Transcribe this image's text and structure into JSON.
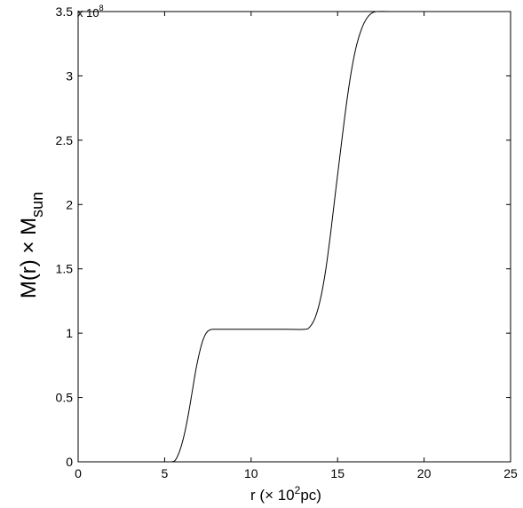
{
  "chart_data": {
    "type": "line",
    "title": "",
    "xlabel": {
      "main": "r (× 10",
      "sup": "2",
      "tail": "pc)"
    },
    "ylabel": {
      "main": "M(r) × M",
      "sub": "sun"
    },
    "y_multiplier": {
      "base": "x 10",
      "exp": "8"
    },
    "xlim": [
      0,
      25
    ],
    "ylim": [
      0,
      3.5
    ],
    "x_ticks": [
      0,
      5,
      10,
      15,
      20,
      25
    ],
    "x_tick_labels": [
      "0",
      "5",
      "10",
      "15",
      "20",
      "25"
    ],
    "y_ticks": [
      0,
      0.5,
      1,
      1.5,
      2,
      2.5,
      3,
      3.5
    ],
    "y_tick_labels": [
      "0",
      "0.5",
      "1",
      "1.5",
      "2",
      "2.5",
      "3",
      "3.5"
    ],
    "grid": false,
    "line_color": "#000000",
    "series": [
      {
        "x": [
          5.4,
          5.6,
          5.8,
          6.0,
          6.2,
          6.4,
          6.6,
          6.8,
          7.0,
          7.2,
          7.4,
          7.6,
          7.8,
          8.0,
          10.0,
          12.0,
          13.1,
          13.4,
          13.7,
          14.0,
          14.3,
          14.6,
          14.9,
          15.2,
          15.5,
          15.8,
          16.1,
          16.4,
          16.7,
          17.0,
          17.3,
          18.0,
          20.0,
          23.3
        ],
        "y": [
          0.0,
          0.01,
          0.06,
          0.14,
          0.25,
          0.39,
          0.55,
          0.71,
          0.84,
          0.94,
          1.0,
          1.025,
          1.03,
          1.03,
          1.03,
          1.03,
          1.03,
          1.05,
          1.12,
          1.26,
          1.48,
          1.78,
          2.12,
          2.45,
          2.77,
          3.04,
          3.24,
          3.37,
          3.45,
          3.49,
          3.5,
          3.5,
          3.5,
          3.5
        ]
      }
    ]
  }
}
